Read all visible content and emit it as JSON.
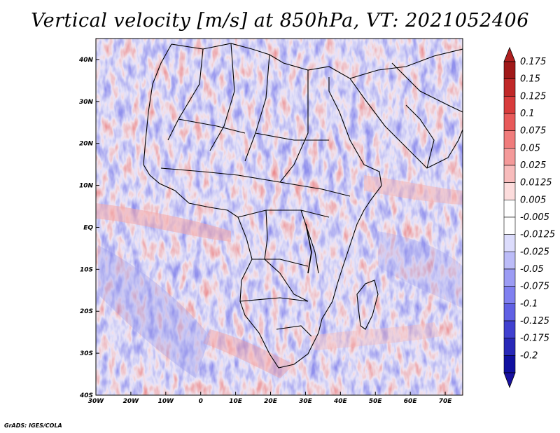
{
  "title": "Vertical velocity [m/s] at 850hPa, VT: 2021052406",
  "credit": "GrADS: IGES/COLA",
  "map": {
    "lon_range": [
      -30,
      75
    ],
    "lat_range": [
      -40,
      45
    ],
    "x_ticks": [
      {
        "value": -30,
        "label": "30W"
      },
      {
        "value": -20,
        "label": "20W"
      },
      {
        "value": -10,
        "label": "10W"
      },
      {
        "value": 0,
        "label": "0"
      },
      {
        "value": 10,
        "label": "10E"
      },
      {
        "value": 20,
        "label": "20E"
      },
      {
        "value": 30,
        "label": "30E"
      },
      {
        "value": 40,
        "label": "40E"
      },
      {
        "value": 50,
        "label": "50E"
      },
      {
        "value": 60,
        "label": "60E"
      },
      {
        "value": 70,
        "label": "70E"
      }
    ],
    "y_ticks": [
      {
        "value": 40,
        "label": "40N"
      },
      {
        "value": 30,
        "label": "30N"
      },
      {
        "value": 20,
        "label": "20N"
      },
      {
        "value": 10,
        "label": "10N"
      },
      {
        "value": 0,
        "label": "EQ"
      },
      {
        "value": -10,
        "label": "10S"
      },
      {
        "value": -20,
        "label": "20S"
      },
      {
        "value": -30,
        "label": "30S"
      },
      {
        "value": -40,
        "label": "40S"
      }
    ]
  },
  "colorbar": {
    "labels": [
      "0.175",
      "0.15",
      "0.125",
      "0.1",
      "0.075",
      "0.05",
      "0.025",
      "0.0125",
      "0.005",
      "-0.005",
      "-0.0125",
      "-0.025",
      "-0.05",
      "-0.075",
      "-0.1",
      "-0.125",
      "-0.175",
      "-0.2"
    ],
    "colors": [
      "#a01818",
      "#c02828",
      "#d83c3c",
      "#e85a5a",
      "#f07c7c",
      "#f49a9a",
      "#f8bcbc",
      "#fcdcdc",
      "#ffffff",
      "#ffffff",
      "#dcdcfc",
      "#bcbcf8",
      "#9c9cf4",
      "#8080f0",
      "#6060e4",
      "#4040d0",
      "#2828b8",
      "#1010a0"
    ],
    "top_color": "#b02020",
    "bottom_color": "#1810a0"
  }
}
